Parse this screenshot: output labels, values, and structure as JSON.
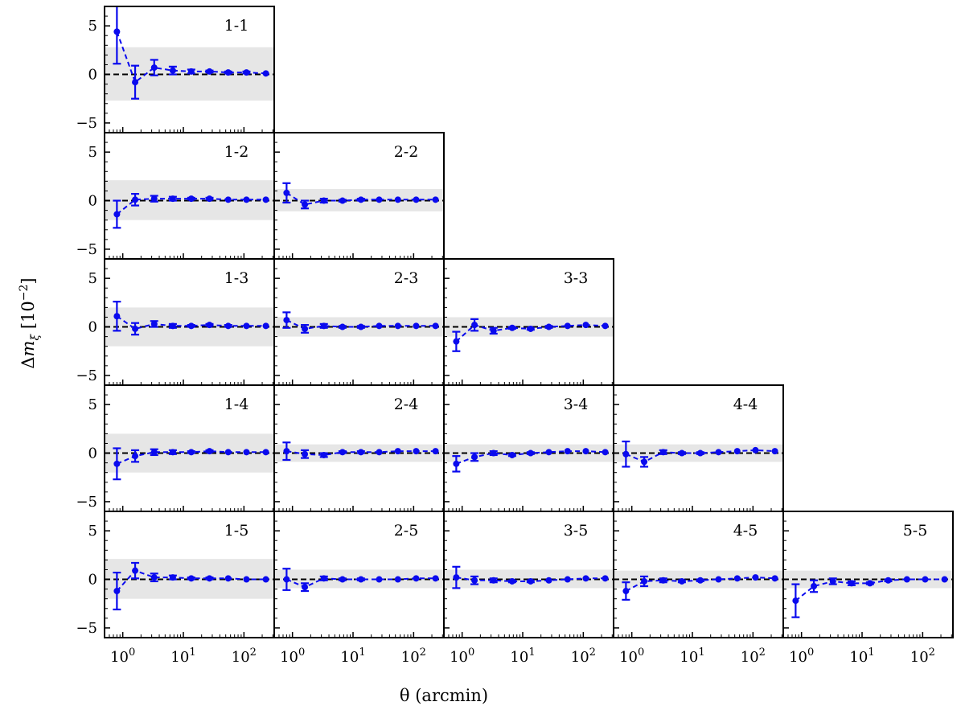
{
  "chart_data": {
    "type": "scatter",
    "xlabel": "θ (arcmin)",
    "ylabel": "Δm_ξ [10^-2]",
    "xscale": "log",
    "xlim": [
      0.5,
      316
    ],
    "ylim": [
      -6,
      7
    ],
    "yticks": [
      -5,
      0,
      5
    ],
    "ytick_labels": [
      "−5",
      "0",
      "5"
    ],
    "xticks": [
      1,
      10,
      100
    ],
    "xtick_labels": [
      {
        "base": "10",
        "exp": "0"
      },
      {
        "base": "10",
        "exp": "1"
      },
      {
        "base": "10",
        "exp": "2"
      }
    ],
    "reference_line_y": 0,
    "grid": false,
    "colors": {
      "series": "#0a0aee",
      "band": "#e6e6e6",
      "reference_line": "#000000"
    },
    "x": [
      0.8,
      1.6,
      3.3,
      6.7,
      13.5,
      27,
      55,
      110,
      230
    ],
    "panels": [
      {
        "label": "1-1",
        "row": 0,
        "col": 0,
        "band": [
          -2.7,
          2.8
        ],
        "y": [
          4.4,
          -0.8,
          0.7,
          0.4,
          0.3,
          0.3,
          0.2,
          0.2,
          0.1
        ],
        "err": [
          3.3,
          1.7,
          0.8,
          0.4,
          0.2,
          0.1,
          0.1,
          0.1,
          0.0
        ]
      },
      {
        "label": "1-2",
        "row": 1,
        "col": 0,
        "band": [
          -2.0,
          2.1
        ],
        "y": [
          -1.4,
          0.1,
          0.2,
          0.2,
          0.2,
          0.2,
          0.1,
          0.1,
          0.1
        ],
        "err": [
          1.4,
          0.6,
          0.3,
          0.2,
          0.1,
          0.1,
          0.0,
          0.0,
          0.0
        ]
      },
      {
        "label": "2-2",
        "row": 1,
        "col": 1,
        "band": [
          -1.1,
          1.2
        ],
        "y": [
          0.8,
          -0.4,
          0.0,
          0.0,
          0.1,
          0.1,
          0.1,
          0.1,
          0.1
        ],
        "err": [
          1.0,
          0.4,
          0.2,
          0.1,
          0.1,
          0.0,
          0.0,
          0.0,
          0.0
        ]
      },
      {
        "label": "1-3",
        "row": 2,
        "col": 0,
        "band": [
          -2.0,
          2.0
        ],
        "y": [
          1.1,
          -0.2,
          0.3,
          0.1,
          0.1,
          0.2,
          0.1,
          0.1,
          0.1
        ],
        "err": [
          1.5,
          0.6,
          0.3,
          0.2,
          0.1,
          0.1,
          0.1,
          0.0,
          0.0
        ]
      },
      {
        "label": "2-3",
        "row": 2,
        "col": 1,
        "band": [
          -1.0,
          1.0
        ],
        "y": [
          0.7,
          -0.2,
          0.1,
          0.0,
          0.0,
          0.1,
          0.1,
          0.1,
          0.1
        ],
        "err": [
          0.8,
          0.4,
          0.2,
          0.1,
          0.1,
          0.0,
          0.0,
          0.0,
          0.0
        ]
      },
      {
        "label": "3-3",
        "row": 2,
        "col": 2,
        "band": [
          -1.0,
          1.0
        ],
        "y": [
          -1.5,
          0.2,
          -0.4,
          -0.1,
          -0.2,
          0.0,
          0.1,
          0.2,
          0.1
        ],
        "err": [
          1.0,
          0.6,
          0.3,
          0.1,
          0.1,
          0.1,
          0.0,
          0.0,
          0.0
        ]
      },
      {
        "label": "1-4",
        "row": 3,
        "col": 0,
        "band": [
          -2.0,
          2.0
        ],
        "y": [
          -1.1,
          -0.3,
          0.1,
          0.1,
          0.1,
          0.2,
          0.1,
          0.1,
          0.1
        ],
        "err": [
          1.6,
          0.6,
          0.3,
          0.2,
          0.1,
          0.1,
          0.0,
          0.0,
          0.0
        ]
      },
      {
        "label": "2-4",
        "row": 3,
        "col": 1,
        "band": [
          -0.9,
          0.9
        ],
        "y": [
          0.2,
          -0.1,
          -0.2,
          0.1,
          0.1,
          0.1,
          0.2,
          0.2,
          0.2
        ],
        "err": [
          0.9,
          0.4,
          0.2,
          0.1,
          0.1,
          0.0,
          0.0,
          0.0,
          0.0
        ]
      },
      {
        "label": "3-4",
        "row": 3,
        "col": 2,
        "band": [
          -0.9,
          0.9
        ],
        "y": [
          -1.1,
          -0.4,
          0.0,
          -0.2,
          0.0,
          0.1,
          0.2,
          0.2,
          0.1
        ],
        "err": [
          0.8,
          0.4,
          0.2,
          0.1,
          0.1,
          0.0,
          0.0,
          0.0,
          0.0
        ]
      },
      {
        "label": "4-4",
        "row": 3,
        "col": 3,
        "band": [
          -0.9,
          0.9
        ],
        "y": [
          -0.1,
          -0.9,
          0.1,
          0.0,
          0.0,
          0.1,
          0.2,
          0.3,
          0.2
        ],
        "err": [
          1.3,
          0.5,
          0.2,
          0.1,
          0.1,
          0.0,
          0.0,
          0.0,
          0.0
        ]
      },
      {
        "label": "1-5",
        "row": 4,
        "col": 0,
        "band": [
          -2.0,
          2.1
        ],
        "y": [
          -1.2,
          0.9,
          0.2,
          0.2,
          0.1,
          0.1,
          0.1,
          0.0,
          0.0
        ],
        "err": [
          1.9,
          0.8,
          0.4,
          0.2,
          0.1,
          0.1,
          0.0,
          0.0,
          0.0
        ]
      },
      {
        "label": "2-5",
        "row": 4,
        "col": 1,
        "band": [
          -0.9,
          1.0
        ],
        "y": [
          0.0,
          -0.8,
          0.1,
          0.0,
          0.0,
          0.0,
          0.0,
          0.1,
          0.1
        ],
        "err": [
          1.1,
          0.4,
          0.2,
          0.1,
          0.1,
          0.0,
          0.0,
          0.0,
          0.0
        ]
      },
      {
        "label": "3-5",
        "row": 4,
        "col": 2,
        "band": [
          -0.9,
          1.0
        ],
        "y": [
          0.2,
          -0.1,
          -0.1,
          -0.2,
          -0.2,
          -0.1,
          0.0,
          0.1,
          0.1
        ],
        "err": [
          1.1,
          0.4,
          0.2,
          0.1,
          0.1,
          0.0,
          0.0,
          0.0,
          0.0
        ]
      },
      {
        "label": "4-5",
        "row": 4,
        "col": 3,
        "band": [
          -0.9,
          0.9
        ],
        "y": [
          -1.2,
          -0.2,
          -0.1,
          -0.2,
          -0.1,
          0.0,
          0.1,
          0.2,
          0.1
        ],
        "err": [
          0.9,
          0.5,
          0.2,
          0.1,
          0.1,
          0.0,
          0.0,
          0.0,
          0.0
        ]
      },
      {
        "label": "5-5",
        "row": 4,
        "col": 4,
        "band": [
          -0.9,
          0.9
        ],
        "y": [
          -2.2,
          -0.7,
          -0.2,
          -0.4,
          -0.4,
          -0.1,
          0.0,
          0.0,
          0.0
        ],
        "err": [
          1.7,
          0.6,
          0.3,
          0.2,
          0.1,
          0.1,
          0.0,
          0.0,
          0.0
        ]
      }
    ]
  }
}
